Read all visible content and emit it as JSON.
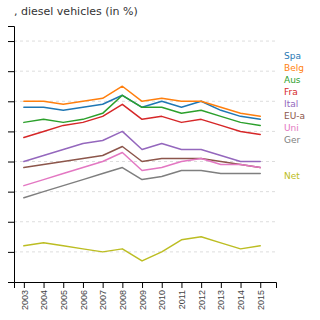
{
  "chart_data": {
    "type": "line",
    "title": ", diesel vehicles (in %)",
    "x": [
      2003,
      2004,
      2005,
      2006,
      2007,
      2008,
      2009,
      2010,
      2011,
      2012,
      2013,
      2014,
      2015
    ],
    "series": [
      {
        "name": "Spa",
        "values": [
          68,
          68,
          67,
          68,
          69,
          72,
          68,
          70,
          68,
          70,
          67,
          65,
          64
        ]
      },
      {
        "name": "Belg",
        "values": [
          70,
          70,
          69,
          70,
          71,
          75,
          70,
          71,
          70,
          70,
          68,
          66,
          65
        ]
      },
      {
        "name": "Aus",
        "values": [
          63,
          64,
          63,
          64,
          66,
          72,
          68,
          68,
          66,
          67,
          65,
          63,
          62
        ]
      },
      {
        "name": "Fra",
        "values": [
          58,
          60,
          62,
          63,
          65,
          69,
          64,
          65,
          63,
          64,
          62,
          60,
          59
        ]
      },
      {
        "name": "Ital",
        "values": [
          50,
          52,
          54,
          56,
          57,
          60,
          54,
          56,
          54,
          54,
          52,
          50,
          50
        ]
      },
      {
        "name": "EU-a",
        "values": [
          48,
          49,
          50,
          51,
          52,
          55,
          50,
          51,
          51,
          51,
          50,
          49,
          48
        ]
      },
      {
        "name": "Uni",
        "values": [
          42,
          44,
          46,
          48,
          50,
          53,
          47,
          48,
          50,
          51,
          49,
          49,
          48
        ]
      },
      {
        "name": "Ger",
        "values": [
          38,
          40,
          42,
          44,
          46,
          48,
          44,
          45,
          47,
          47,
          46,
          46,
          46
        ]
      },
      {
        "name": "Net",
        "values": [
          22,
          23,
          22,
          21,
          20,
          21,
          17,
          20,
          24,
          25,
          23,
          21,
          22
        ]
      }
    ],
    "xlim": [
      2002.5,
      2015.8
    ],
    "xticks": [
      2003,
      2004,
      2005,
      2006,
      2007,
      2008,
      2009,
      2010,
      2011,
      2012,
      2013,
      2014,
      2015
    ],
    "ylim": [
      10,
      95
    ],
    "yticks": [
      20,
      30,
      40,
      50,
      60,
      70,
      80,
      90
    ],
    "grid": true,
    "legend": "right",
    "tick_labels": "x"
  }
}
